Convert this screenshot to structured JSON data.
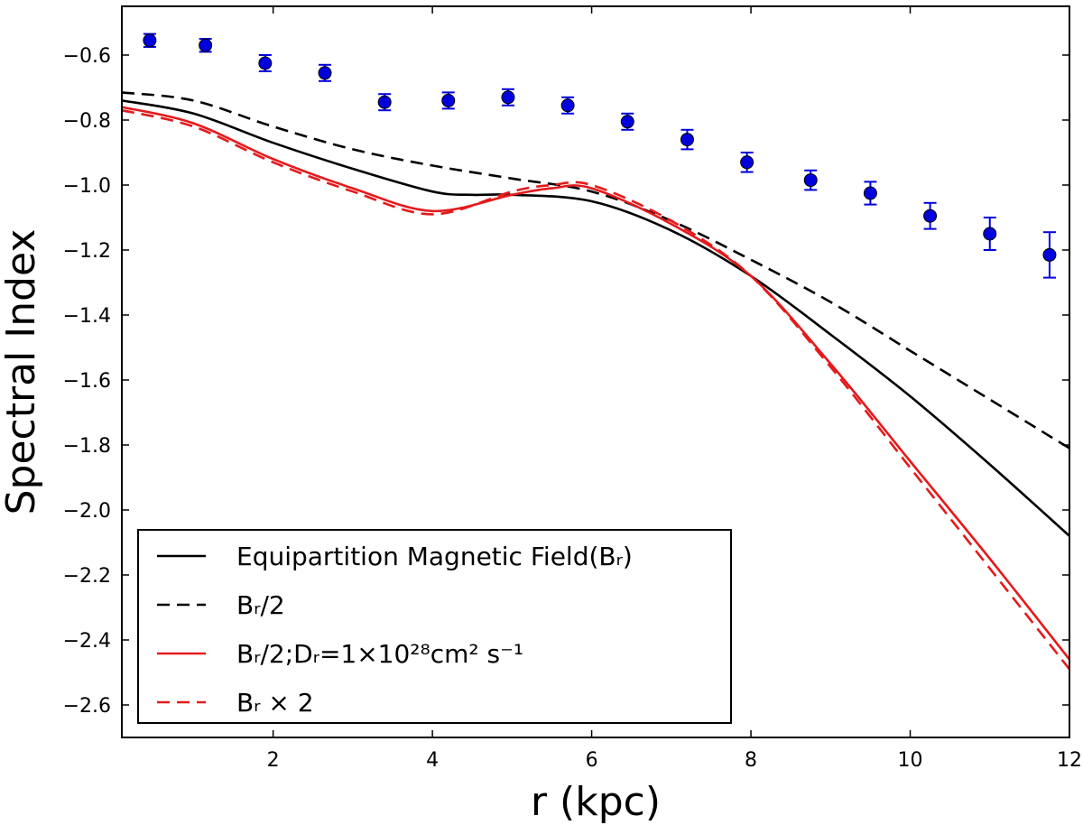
{
  "chart_data": {
    "type": "line",
    "xlabel": "r (kpc)",
    "ylabel": "Spectral Index",
    "xlim": [
      0.1,
      12
    ],
    "ylim": [
      -2.7,
      -0.45
    ],
    "xticks": [
      2,
      4,
      6,
      8,
      10,
      12
    ],
    "yticks": [
      -0.6,
      -0.8,
      -1.0,
      -1.2,
      -1.4,
      -1.6,
      -1.8,
      -2.0,
      -2.2,
      -2.4,
      -2.6
    ],
    "xtick_labels": [
      "2",
      "4",
      "6",
      "8",
      "10",
      "12"
    ],
    "ytick_labels": [
      "−0.6",
      "−0.8",
      "−1.0",
      "−1.2",
      "−1.4",
      "−1.6",
      "−1.8",
      "−2.0",
      "−2.2",
      "−2.4",
      "−2.6"
    ],
    "grid": false,
    "legend_position": "lower-left",
    "series": [
      {
        "name": "Equipartition Magnetic Field(Bᵣ)",
        "color": "#000000",
        "style": "solid",
        "x": [
          0.1,
          1,
          2,
          3,
          4,
          4.5,
          5,
          6,
          7,
          8,
          9,
          10,
          11,
          12
        ],
        "y": [
          -0.74,
          -0.78,
          -0.87,
          -0.95,
          -1.02,
          -1.03,
          -1.03,
          -1.05,
          -1.14,
          -1.28,
          -1.46,
          -1.65,
          -1.86,
          -2.08
        ]
      },
      {
        "name": "Bᵣ/2",
        "color": "#000000",
        "style": "dashed",
        "x": [
          0.1,
          1,
          2,
          3,
          4,
          5,
          6,
          7,
          8,
          9,
          10,
          11,
          12
        ],
        "y": [
          -0.715,
          -0.74,
          -0.82,
          -0.89,
          -0.94,
          -0.98,
          -1.02,
          -1.11,
          -1.23,
          -1.36,
          -1.51,
          -1.66,
          -1.81
        ]
      },
      {
        "name": "Bᵣ/2;Dᵣ=1×10²⁸cm² s⁻¹",
        "color": "#e41a1c",
        "style": "solid",
        "x": [
          0.1,
          1,
          2,
          3,
          4,
          5,
          5.5,
          6,
          7,
          8,
          9,
          10,
          11,
          12
        ],
        "y": [
          -0.76,
          -0.81,
          -0.92,
          -1.01,
          -1.08,
          -1.03,
          -1.01,
          -1.01,
          -1.12,
          -1.28,
          -1.55,
          -1.85,
          -2.15,
          -2.46
        ]
      },
      {
        "name": "Bᵣ × 2",
        "color": "#e41a1c",
        "style": "dashed",
        "x": [
          0.1,
          1,
          2,
          3,
          4,
          5,
          5.5,
          6,
          7,
          8,
          9,
          10,
          11,
          12
        ],
        "y": [
          -0.77,
          -0.82,
          -0.93,
          -1.02,
          -1.09,
          -1.02,
          -1.0,
          -1.0,
          -1.11,
          -1.28,
          -1.56,
          -1.87,
          -2.18,
          -2.49
        ]
      }
    ],
    "points": {
      "name": "",
      "color": "#0000dd",
      "x": [
        0.45,
        1.15,
        1.9,
        2.65,
        3.4,
        4.2,
        4.95,
        5.7,
        6.45,
        7.2,
        7.95,
        8.75,
        9.5,
        10.25,
        11.0,
        11.75
      ],
      "y": [
        -0.555,
        -0.57,
        -0.625,
        -0.655,
        -0.745,
        -0.74,
        -0.73,
        -0.755,
        -0.805,
        -0.86,
        -0.93,
        -0.985,
        -1.025,
        -1.095,
        -1.15,
        -1.215
      ],
      "err": [
        0.02,
        0.02,
        0.025,
        0.025,
        0.025,
        0.025,
        0.025,
        0.025,
        0.025,
        0.03,
        0.03,
        0.03,
        0.035,
        0.04,
        0.05,
        0.07
      ]
    }
  }
}
